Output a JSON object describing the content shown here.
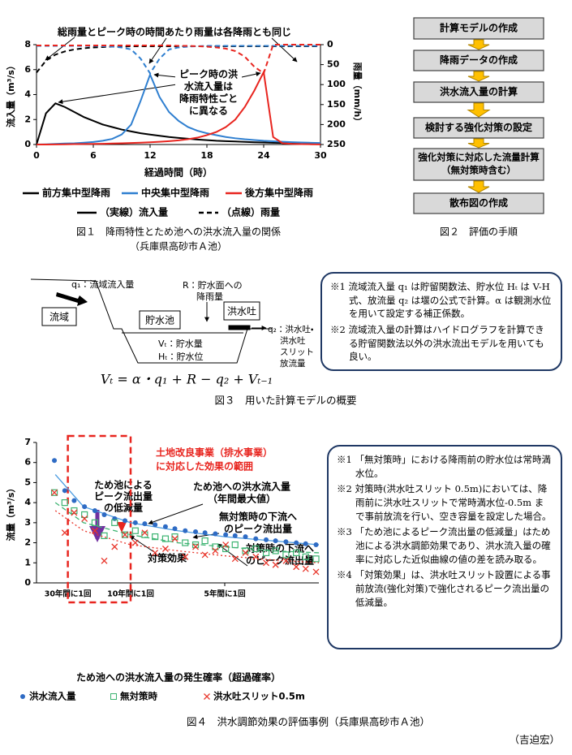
{
  "chart_data": [
    {
      "type": "line",
      "annotations": {
        "top": "総雨量とピーク時の時間あたり雨量は各降雨とも同じ",
        "peak": [
          "ピーク時の洪",
          "水流入量は",
          "降雨特性ごと",
          "に異なる"
        ]
      },
      "x_label": "経過時間（時）",
      "y_label": "流入量（m³/s）",
      "y2_label": "雨量（mm/h）",
      "x": [
        0,
        1,
        2,
        3,
        4,
        5,
        6,
        7,
        8,
        9,
        10,
        11,
        12,
        13,
        14,
        15,
        16,
        17,
        18,
        19,
        20,
        21,
        22,
        23,
        24,
        25,
        26,
        27,
        28,
        29,
        30
      ],
      "xlim": [
        0,
        30
      ],
      "xticks": [
        0,
        6,
        12,
        18,
        24,
        30
      ],
      "ylim": [
        0,
        8
      ],
      "yticks": [
        0,
        2,
        4,
        6,
        8
      ],
      "y2lim": [
        250,
        0
      ],
      "y2ticks": [
        0,
        50,
        100,
        150,
        200,
        250
      ],
      "series": [
        {
          "name": "前方集中型降雨",
          "color": "#000000",
          "values": [
            0,
            2.5,
            3.3,
            3.0,
            2.6,
            2.2,
            1.9,
            1.6,
            1.4,
            1.2,
            1.05,
            0.9,
            0.8,
            0.7,
            0.6,
            0.53,
            0.46,
            0.4,
            0.35,
            0.3,
            0.27,
            0.24,
            0.21,
            0.18,
            0.16,
            0.14,
            0.12,
            0.11,
            0.1,
            0.09,
            0.08
          ]
        },
        {
          "name": "中央集中型降雨",
          "color": "#2f7fd0",
          "values": [
            0,
            0.02,
            0.05,
            0.08,
            0.1,
            0.15,
            0.2,
            0.3,
            0.45,
            0.8,
            1.6,
            3.5,
            5.6,
            3.8,
            2.6,
            1.9,
            1.4,
            1.1,
            0.9,
            0.75,
            0.6,
            0.5,
            0.42,
            0.36,
            0.3,
            0.26,
            0.22,
            0.19,
            0.16,
            0.14,
            0.12
          ]
        },
        {
          "name": "後方集中型降雨",
          "color": "#e8251f",
          "values": [
            0,
            0,
            0.01,
            0.02,
            0.03,
            0.04,
            0.05,
            0.06,
            0.08,
            0.1,
            0.12,
            0.15,
            0.18,
            0.22,
            0.27,
            0.33,
            0.42,
            0.55,
            0.75,
            1.0,
            1.4,
            2.0,
            3.0,
            4.3,
            5.8,
            0.6,
            0.1,
            0.05,
            0.03,
            0.02,
            0.01
          ]
        },
        {
          "color": "#000000",
          "axis": "y2",
          "line_style": "dashed",
          "values": [
            70,
            40,
            25,
            17,
            12,
            9,
            7,
            6,
            5,
            5,
            4,
            4,
            4,
            4,
            4,
            4,
            4,
            4,
            4,
            4,
            4,
            4,
            4,
            4,
            4,
            4,
            4,
            4,
            4,
            4,
            4
          ]
        },
        {
          "color": "#2f7fd0",
          "axis": "y2",
          "line_style": "dashed",
          "values": [
            3,
            3,
            3,
            3,
            3,
            3,
            3,
            4,
            5,
            7,
            12,
            35,
            72,
            35,
            12,
            7,
            5,
            4,
            3,
            3,
            3,
            3,
            3,
            3,
            3,
            3,
            3,
            3,
            3,
            3,
            3
          ]
        },
        {
          "color": "#e8251f",
          "axis": "y2",
          "line_style": "dashed",
          "values": [
            2,
            2,
            2,
            2,
            2,
            2,
            2,
            2,
            2,
            2,
            2,
            2,
            2,
            2,
            2,
            3,
            3,
            4,
            5,
            7,
            10,
            16,
            30,
            55,
            72,
            0,
            0,
            0,
            0,
            0,
            0
          ]
        }
      ],
      "style_legend": [
        {
          "label": "（実線）流入量",
          "line_style": "solid"
        },
        {
          "label": "（点線）雨量",
          "line_style": "dashed"
        }
      ],
      "caption": [
        "図１　降雨特性とため池への洪水流入量の関係",
        "（兵庫県高砂市Ａ池）"
      ]
    },
    {
      "type": "scatter",
      "annotations": {
        "range": [
          "土地改良事業（排水事業）",
          "に対応した効果の範囲"
        ],
        "reduction": [
          "ため池による",
          "ピーク流出量",
          "の低減量"
        ],
        "inflow": [
          "ため池への洪水流入量",
          "（年間最大値）"
        ],
        "no_measure": [
          "無対策時の下流へ",
          "のピーク流出量"
        ],
        "measure": [
          "対策時の下流へ",
          "のピーク流出量"
        ],
        "effect": "対策効果"
      },
      "x_label": "ため池への洪水流入量の発生確率（超過確率）",
      "y_label": "流量（m³/s）",
      "xlim": [
        0,
        0.3
      ],
      "xticks": [
        {
          "value": 0.0333,
          "label": "30年間に1回"
        },
        {
          "value": 0.1,
          "label": "10年間に1回"
        },
        {
          "value": 0.2,
          "label": "5年間に1回"
        }
      ],
      "ylim": [
        0,
        7
      ],
      "yticks": [
        0,
        1,
        2,
        3,
        4,
        5,
        6,
        7
      ],
      "highlight_x": [
        0.0333,
        0.1
      ],
      "x": [
        0.019,
        0.03,
        0.04,
        0.051,
        0.062,
        0.072,
        0.083,
        0.094,
        0.105,
        0.115,
        0.126,
        0.137,
        0.147,
        0.158,
        0.169,
        0.179,
        0.19,
        0.201,
        0.211,
        0.222,
        0.233,
        0.244,
        0.254,
        0.265,
        0.276,
        0.286,
        0.297
      ],
      "trend_x": [
        0.02,
        0.05,
        0.1,
        0.15,
        0.2,
        0.25,
        0.3
      ],
      "series": [
        {
          "name": "洪水流入量",
          "color": "#2e6bc4",
          "marker": "circle",
          "trend_style": "solid",
          "trend_color": "#4a9be0",
          "values": [
            6.1,
            4.6,
            4.1,
            3.8,
            3.6,
            3.4,
            3.2,
            3.1,
            3.0,
            2.95,
            2.9,
            2.8,
            2.7,
            2.6,
            2.55,
            2.5,
            2.45,
            2.4,
            2.35,
            2.3,
            2.2,
            2.15,
            2.1,
            2.05,
            2.0,
            1.95,
            1.9
          ],
          "trend": [
            5.4,
            3.8,
            3.0,
            2.6,
            2.3,
            2.1,
            1.9
          ]
        },
        {
          "name": "無対策時",
          "color": "#3cb371",
          "marker": "square",
          "trend_style": "dashed",
          "trend_color": "#3cb371",
          "values": [
            4.5,
            4.0,
            3.6,
            3.4,
            3.0,
            2.35,
            3.0,
            2.4,
            2.6,
            2.4,
            2.3,
            2.2,
            2.3,
            2.0,
            1.9,
            2.1,
            1.8,
            1.7,
            1.9,
            1.6,
            1.7,
            1.5,
            1.6,
            1.4,
            1.5,
            1.3,
            1.2
          ],
          "trend": [
            4.0,
            3.0,
            2.4,
            2.0,
            1.8,
            1.6,
            1.5
          ]
        },
        {
          "name": "洪水吐スリット0.5m",
          "color": "#e8352a",
          "marker": "x",
          "trend_style": "dotted",
          "trend_color": "#e8352a",
          "values": [
            4.5,
            2.5,
            3.5,
            3.2,
            2.6,
            1.1,
            1.8,
            2.4,
            2.0,
            2.5,
            1.5,
            1.7,
            2.2,
            1.3,
            1.8,
            1.4,
            1.6,
            1.9,
            1.2,
            1.5,
            1.3,
            1.0,
            0.9,
            1.1,
            0.8,
            0.7,
            0.55
          ],
          "trend": [
            3.6,
            2.6,
            1.9,
            1.6,
            1.35,
            1.15,
            1.0
          ]
        }
      ],
      "caption": "図４　洪水調節効果の評価事例（兵庫県高砂市Ａ池）"
    }
  ],
  "figure2": {
    "steps": [
      "計算モデルの作成",
      "降雨データの作成",
      "洪水流入量の計算",
      "検討する強化対策の設定",
      [
        "強化対策に対応した流量計算",
        "（無対策時含む）"
      ],
      "散布図の作成"
    ],
    "caption": "図２　評価の手順"
  },
  "figure3": {
    "q1": "q₁：流域流入量",
    "R": [
      "R：貯水面への",
      "降雨量"
    ],
    "basin": "流域",
    "reservoir": "貯水池",
    "spillway": "洪水吐",
    "Vt": "Vₜ：貯水量",
    "Ht": "Hₜ：貯水位",
    "q2": [
      "q₂：洪水吐・",
      "洪水吐",
      "スリット",
      "放流量"
    ],
    "formula": "Vₜ = α・q₁ + R − q₂ + Vₜ₋₁",
    "notes": [
      "※1 流域流入量 q₁ は貯留関数法、貯水位 Hₜ は V-H 式、放流量 q₂ は堰の公式で計算。α は観測水位を用いて設定する補正係数。",
      "※2 流域流入量の計算はハイドログラフを計算できる貯留関数法以外の洪水流出モデルを用いても良い。"
    ],
    "caption": "図３　用いた計算モデルの概要"
  },
  "figure4_notes": [
    "※1 「無対策時」における降雨前の貯水位は常時満水位。",
    "※2 対策時(洪水吐スリット 0.5m)においては、降雨前に洪水吐スリットで常時満水位-0.5m まで事前放流を行い、空き容量を設定した場合。",
    "※3 「ため池によるピーク流出量の低減量」はため池による洪水調節効果であり、洪水流入量の確率に対応した近似曲線の値の差を読み取る。",
    "※4 「対策効果」は、洪水吐スリット設置による事前放流(強化対策)で強化されるピーク流出量の低減量。"
  ],
  "author": "（吉迫宏）"
}
